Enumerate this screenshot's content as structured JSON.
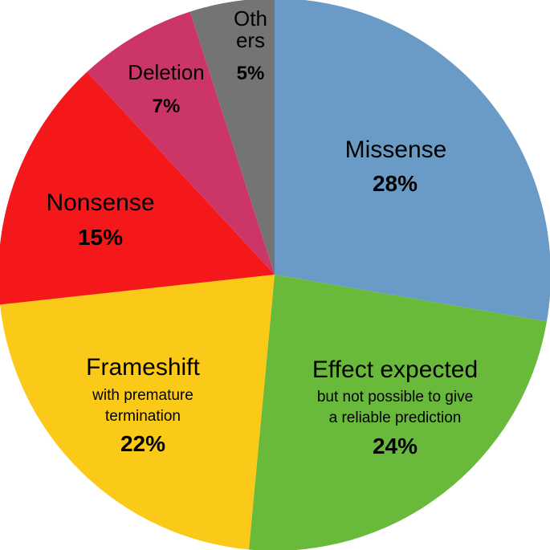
{
  "chart_data": {
    "type": "pie",
    "title": "",
    "start_angle_deg": 0,
    "direction": "clockwise",
    "slices": [
      {
        "name": "Missense",
        "value": 28,
        "value_label": "28%",
        "color": "#6a9bc6"
      },
      {
        "name": "Effect expected",
        "subtitle": [
          "but not possible to give",
          "a reliable prediction"
        ],
        "value": 24,
        "value_label": "24%",
        "color": "#69ba3a"
      },
      {
        "name": "Frameshift",
        "subtitle": [
          "with premature",
          "termination"
        ],
        "value": 22,
        "value_label": "22%",
        "color": "#fbca18"
      },
      {
        "name": "Nonsense",
        "value": 15,
        "value_label": "15%",
        "color": "#f4181b"
      },
      {
        "name": "Deletion",
        "value": 7,
        "value_label": "7%",
        "color": "#cc3567"
      },
      {
        "name": "Others",
        "name_lines": [
          "Oth",
          "ers"
        ],
        "value": 5,
        "value_label": "5%",
        "color": "#747474"
      }
    ]
  }
}
